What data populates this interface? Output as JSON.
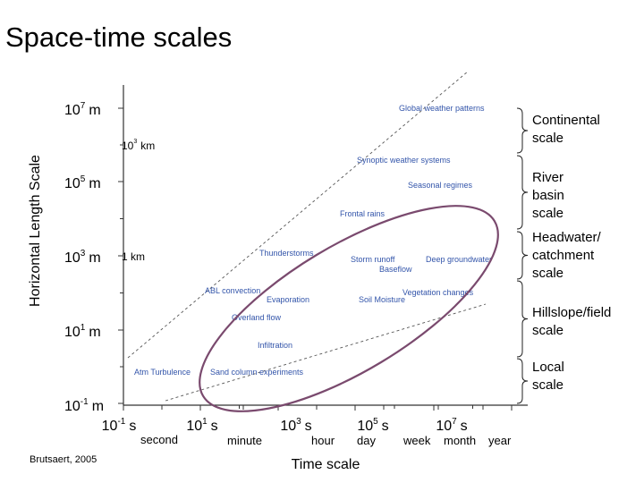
{
  "slide": {
    "title": "Space-time scales",
    "citation": "Brutsaert, 2005"
  },
  "axes": {
    "ylabel": "Horizontal Length Scale",
    "xlabel": "Time scale",
    "y_ticks": [
      {
        "base": "10",
        "exp": "7",
        "unit": "m"
      },
      {
        "base": "10",
        "exp": "5",
        "unit": "m"
      },
      {
        "base": "10",
        "exp": "3",
        "unit": "m"
      },
      {
        "base": "10",
        "exp": "1",
        "unit": "m"
      },
      {
        "base": "10",
        "exp": "-1",
        "unit": "m"
      }
    ],
    "y_extra": [
      {
        "base": "10",
        "exp": "3",
        "unit": "km"
      },
      {
        "text": "1 km"
      }
    ],
    "x_ticks": [
      {
        "base": "10",
        "exp": "-1",
        "unit": "s"
      },
      {
        "base": "10",
        "exp": "1",
        "unit": "s"
      },
      {
        "base": "10",
        "exp": "3",
        "unit": "s"
      },
      {
        "base": "10",
        "exp": "5",
        "unit": "s"
      },
      {
        "base": "10",
        "exp": "7",
        "unit": "s"
      }
    ],
    "x_named": [
      "second",
      "minute",
      "hour",
      "day",
      "week",
      "month",
      "year"
    ]
  },
  "phenomena": [
    "Global weather patterns",
    "Synoptic weather systems",
    "Seasonal regimes",
    "Frontal rains",
    "Thunderstorms",
    "Storm runoff",
    "Deep groundwater",
    "Baseflow",
    "ABL convection",
    "Evaporation",
    "Vegetation changes",
    "Soil Moisture",
    "Overland flow",
    "Infiltration",
    "Atm Turbulence",
    "Sand column experiments"
  ],
  "scales": [
    [
      "Continental",
      "scale"
    ],
    [
      "River",
      "basin",
      "scale"
    ],
    [
      "Headwater/",
      "catchment",
      "scale"
    ],
    [
      "Hillslope/field",
      "scale"
    ],
    [
      "Local",
      "scale"
    ]
  ],
  "colors": {
    "phenomena": "#3355aa",
    "ellipse": "#7a4a6e",
    "axis": "#333333",
    "dashed": "#555555"
  }
}
